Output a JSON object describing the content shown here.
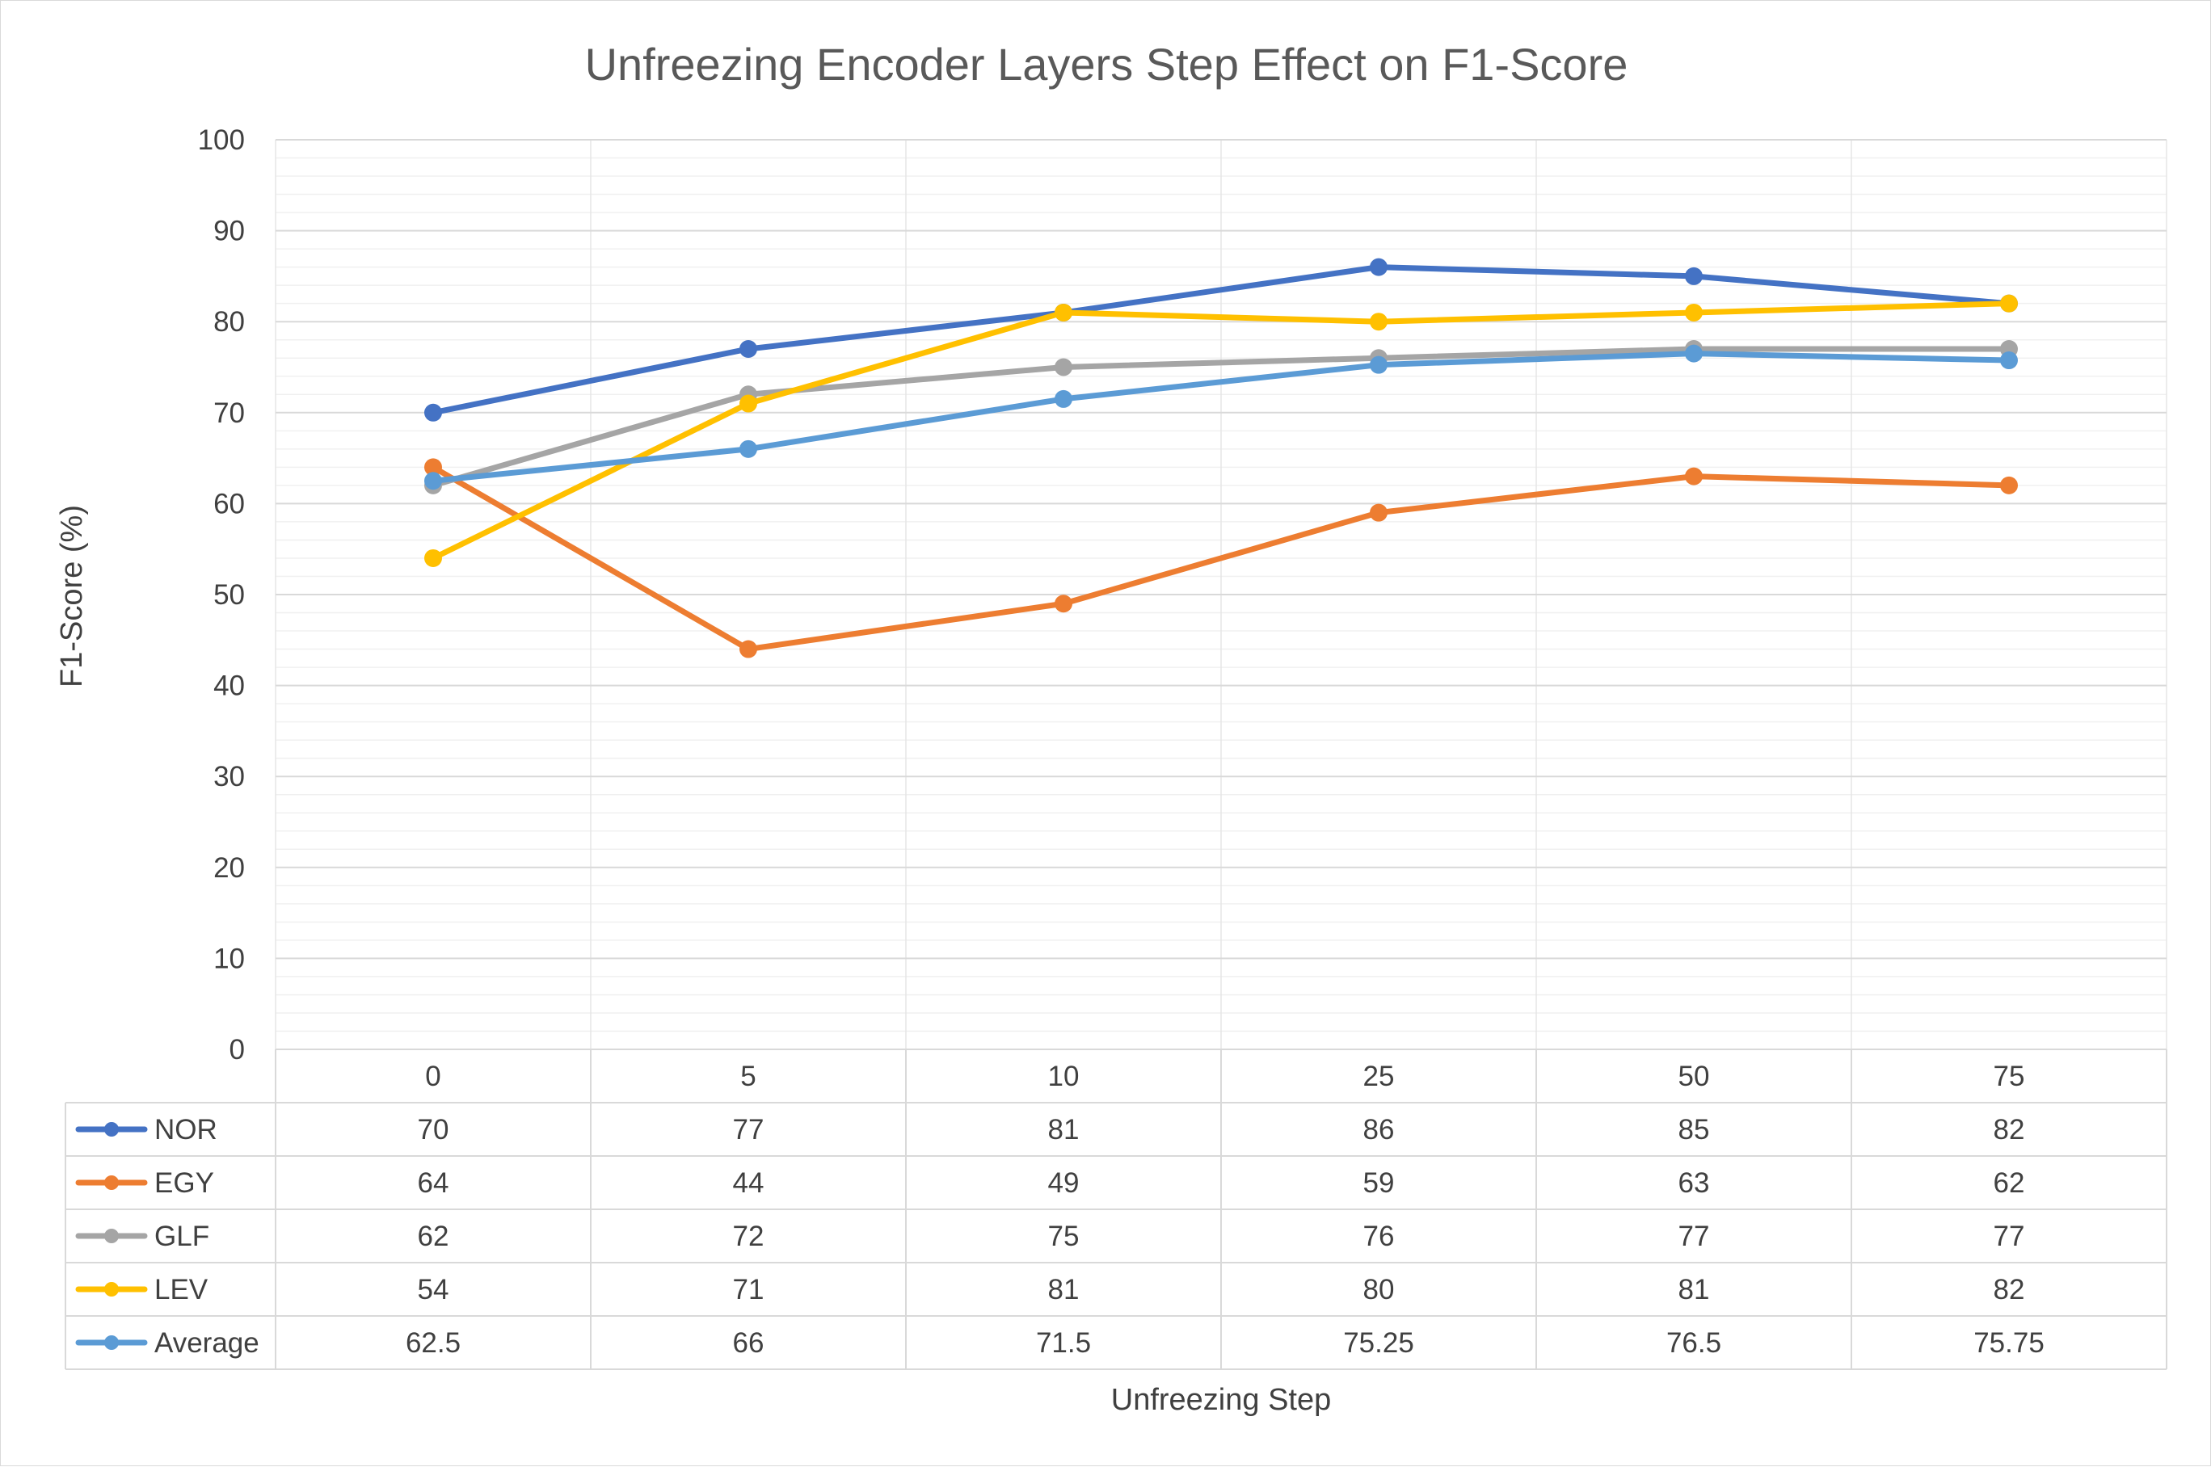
{
  "chart_data": {
    "type": "line",
    "title": "Unfreezing Encoder Layers Step Effect on F1-Score",
    "xlabel": "Unfreezing Step",
    "ylabel": "F1-Score (%)",
    "ylim": [
      0,
      100
    ],
    "y_ticks": [
      "0",
      "10",
      "20",
      "30",
      "40",
      "50",
      "60",
      "70",
      "80",
      "90",
      "100"
    ],
    "categories": [
      "0",
      "5",
      "10",
      "25",
      "50",
      "75"
    ],
    "grid": true,
    "legend": "data-table",
    "series": [
      {
        "name": "NOR",
        "color": "#4472c4",
        "values": [
          70,
          77,
          81,
          86,
          85,
          82
        ],
        "labels": [
          "70",
          "77",
          "81",
          "86",
          "85",
          "82"
        ]
      },
      {
        "name": "EGY",
        "color": "#ed7d31",
        "values": [
          64,
          44,
          49,
          59,
          63,
          62
        ],
        "labels": [
          "64",
          "44",
          "49",
          "59",
          "63",
          "62"
        ]
      },
      {
        "name": "GLF",
        "color": "#a5a5a5",
        "values": [
          62,
          72,
          75,
          76,
          77,
          77
        ],
        "labels": [
          "62",
          "72",
          "75",
          "76",
          "77",
          "77"
        ]
      },
      {
        "name": "LEV",
        "color": "#ffc000",
        "values": [
          54,
          71,
          81,
          80,
          81,
          82
        ],
        "labels": [
          "54",
          "71",
          "81",
          "80",
          "81",
          "82"
        ]
      },
      {
        "name": "Average",
        "color": "#5b9bd5",
        "values": [
          62.5,
          66,
          71.5,
          75.25,
          76.5,
          75.75
        ],
        "labels": [
          "62.5",
          "66",
          "71.5",
          "75.25",
          "76.5",
          "75.75"
        ]
      }
    ]
  }
}
